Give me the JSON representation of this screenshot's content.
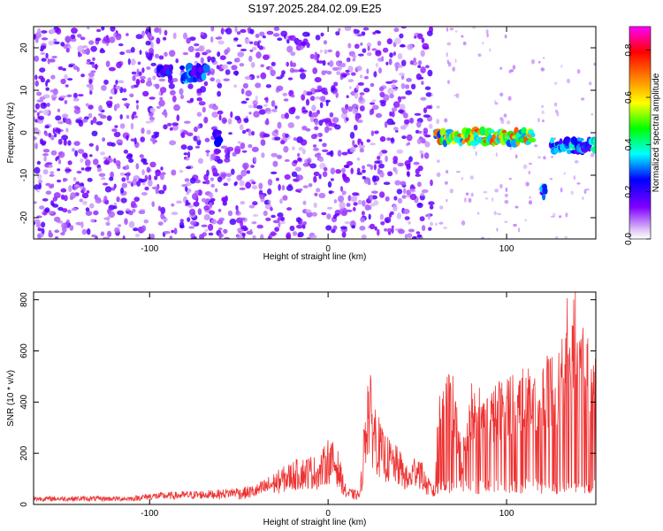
{
  "title": "S197.2025.284.02.09.E25",
  "chart_data": [
    {
      "type": "heatmap",
      "xlabel": "Height of straight line (km)",
      "ylabel": "Frequency (Hz)",
      "xlim": [
        -165,
        150
      ],
      "ylim": [
        -25,
        25
      ],
      "xticks": [
        -100,
        0,
        100
      ],
      "yticks": [
        -20,
        -10,
        0,
        10,
        20
      ],
      "colorbar": {
        "label": "Normalized spectral amplitude",
        "range": [
          0,
          0.9
        ],
        "ticks": [
          0.0,
          0.2,
          0.4,
          0.6,
          0.8
        ],
        "colors": [
          "#ffffff",
          "#e0c8f8",
          "#8000ff",
          "#0000ff",
          "#00ffff",
          "#00ff00",
          "#ffff00",
          "#ff8000",
          "#ff0000",
          "#ff00ff"
        ]
      },
      "features": [
        {
          "x": [
            -95,
            -88
          ],
          "freq": 14,
          "amp": 0.3
        },
        {
          "x": [
            -82,
            -68
          ],
          "freq": 14,
          "amp": 0.35
        },
        {
          "x": [
            -63,
            -61
          ],
          "freq": -1,
          "amp": 0.35
        },
        {
          "x": [
            60,
            115
          ],
          "freq": -1,
          "amp": 0.75
        },
        {
          "x": [
            120,
            122
          ],
          "freq": -14,
          "amp": 0.35
        },
        {
          "x": [
            125,
            150
          ],
          "freq": -3,
          "amp": 0.45
        }
      ]
    },
    {
      "type": "line",
      "xlabel": "Height of straight line (km)",
      "ylabel": "SNR (10 * v/v)",
      "xlim": [
        -165,
        150
      ],
      "ylim": [
        0,
        830
      ],
      "xticks": [
        -100,
        0,
        100
      ],
      "yticks": [
        0,
        200,
        400,
        600,
        800
      ],
      "color": "#ee3333",
      "envelope": [
        [
          -165,
          25
        ],
        [
          -110,
          25
        ],
        [
          -100,
          35
        ],
        [
          -80,
          40
        ],
        [
          -60,
          45
        ],
        [
          -50,
          55
        ],
        [
          -40,
          70
        ],
        [
          -30,
          110
        ],
        [
          -20,
          150
        ],
        [
          -10,
          170
        ],
        [
          -5,
          160
        ],
        [
          0,
          230
        ],
        [
          5,
          200
        ],
        [
          10,
          60
        ],
        [
          15,
          50
        ],
        [
          18,
          50
        ],
        [
          22,
          500
        ],
        [
          25,
          400
        ],
        [
          30,
          260
        ],
        [
          35,
          220
        ],
        [
          40,
          190
        ],
        [
          45,
          120
        ],
        [
          50,
          200
        ],
        [
          55,
          100
        ],
        [
          60,
          60
        ],
        [
          62,
          500
        ],
        [
          65,
          480
        ],
        [
          70,
          460
        ],
        [
          75,
          200
        ],
        [
          80,
          450
        ],
        [
          90,
          400
        ],
        [
          100,
          480
        ],
        [
          110,
          500
        ],
        [
          120,
          520
        ],
        [
          130,
          560
        ],
        [
          137,
          740
        ],
        [
          142,
          640
        ],
        [
          150,
          580
        ]
      ]
    }
  ]
}
